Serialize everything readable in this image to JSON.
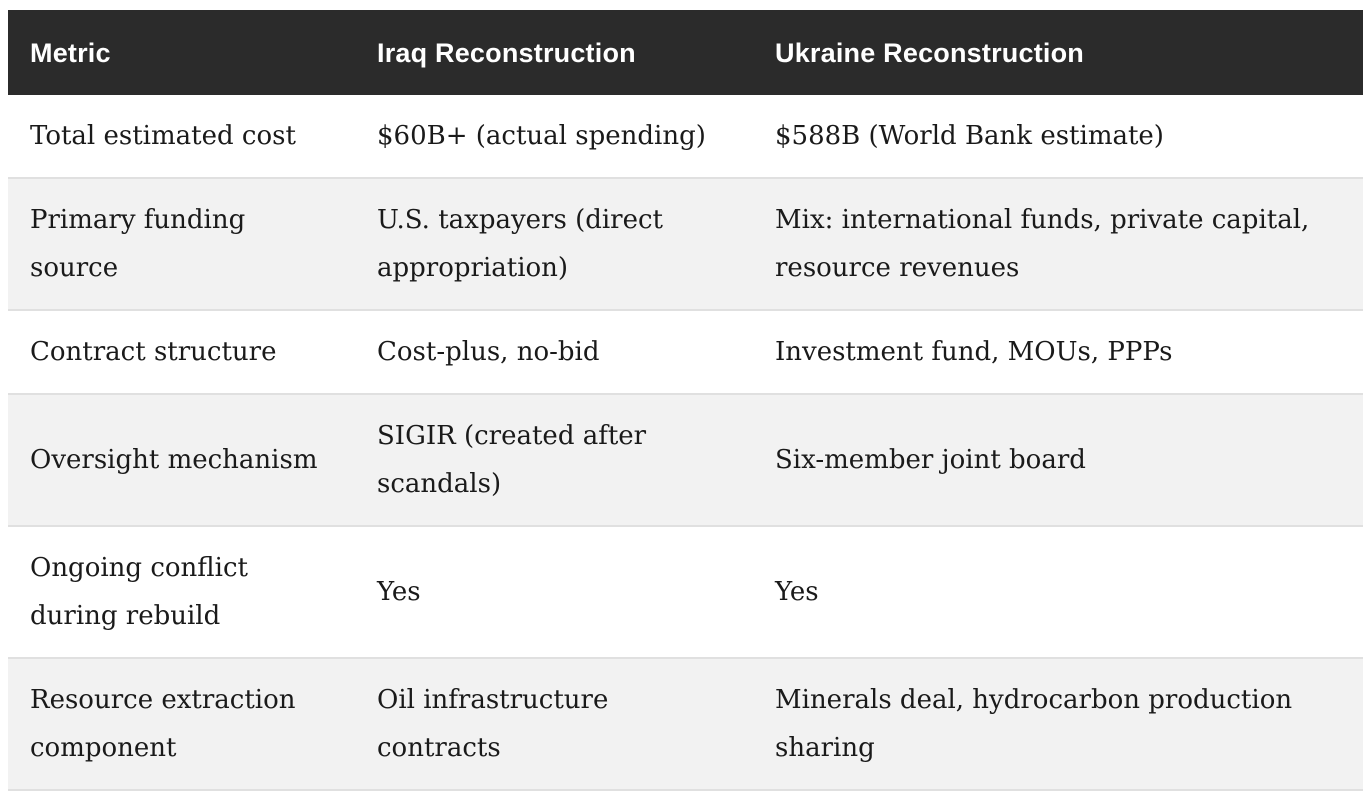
{
  "table": {
    "columns": [
      {
        "key": "metric",
        "label": "Metric"
      },
      {
        "key": "iraq",
        "label": "Iraq Reconstruction"
      },
      {
        "key": "ukraine",
        "label": "Ukraine Reconstruction"
      }
    ],
    "rows": [
      {
        "metric": "Total estimated cost",
        "iraq": "$60B+ (actual spending)",
        "ukraine": "$588B (World Bank estimate)"
      },
      {
        "metric": "Primary funding\nsource",
        "iraq": "U.S. taxpayers (direct\nappropriation)",
        "ukraine": "Mix: international funds, private capital,\nresource revenues"
      },
      {
        "metric": "Contract structure",
        "iraq": "Cost-plus, no-bid",
        "ukraine": "Investment fund, MOUs, PPPs"
      },
      {
        "metric": "Oversight mechanism",
        "iraq": "SIGIR (created after\nscandals)",
        "ukraine": "Six-member joint board"
      },
      {
        "metric": "Ongoing conflict\nduring rebuild",
        "iraq": "Yes",
        "ukraine": "Yes"
      },
      {
        "metric": "Resource extraction\ncomponent",
        "iraq": "Oil infrastructure\ncontracts",
        "ukraine": "Minerals deal, hydrocarbon production\nsharing"
      }
    ],
    "colors": {
      "header_bg": "#2b2b2b",
      "header_text": "#ffffff",
      "row_alt_bg": "#f2f2f2",
      "border": "#e0e0e0",
      "body_text": "#1a1a1a"
    }
  }
}
